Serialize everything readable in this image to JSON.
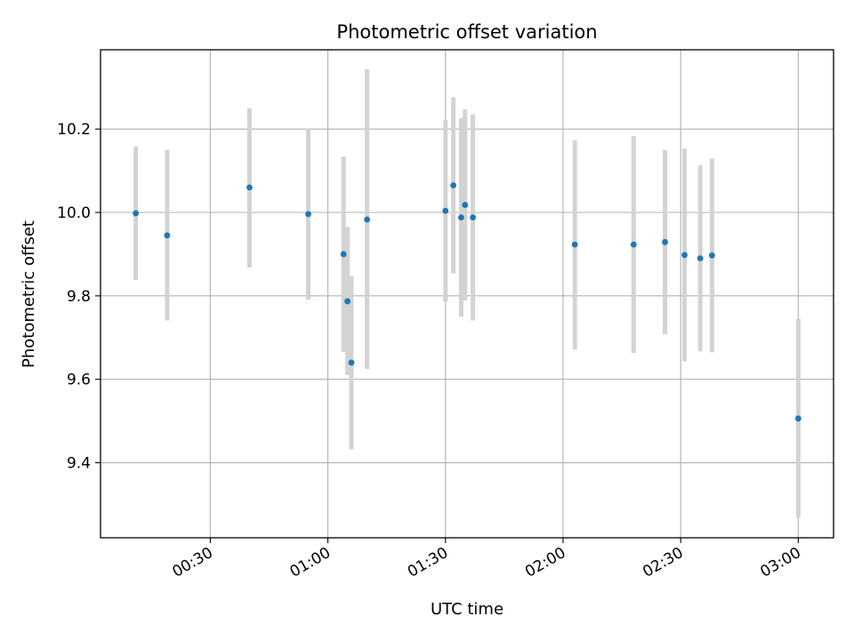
{
  "chart_data": {
    "type": "scatter",
    "title": "Photometric offset variation",
    "xlabel": "UTC time",
    "ylabel": "Photometric offset",
    "grid": true,
    "xlim": [
      "00:02",
      "03:09"
    ],
    "ylim": [
      9.22,
      10.39
    ],
    "x_ticks": [
      "00:30",
      "01:00",
      "01:30",
      "02:00",
      "02:30",
      "03:00"
    ],
    "y_ticks": [
      9.4,
      9.6,
      9.8,
      10.0,
      10.2
    ],
    "marker_color": "#1f77b4",
    "errorbar_color": "#d3d3d3",
    "series": [
      {
        "points": [
          {
            "x": "00:11",
            "y": 9.998,
            "low": 9.838,
            "high": 10.158
          },
          {
            "x": "00:19",
            "y": 9.945,
            "low": 9.741,
            "high": 10.15
          },
          {
            "x": "00:40",
            "y": 10.06,
            "low": 9.868,
            "high": 10.25
          },
          {
            "x": "00:55",
            "y": 9.996,
            "low": 9.791,
            "high": 10.201
          },
          {
            "x": "01:04",
            "y": 9.9,
            "low": 9.666,
            "high": 10.134
          },
          {
            "x": "01:05",
            "y": 9.787,
            "low": 9.61,
            "high": 9.965
          },
          {
            "x": "01:06",
            "y": 9.64,
            "low": 9.432,
            "high": 9.848
          },
          {
            "x": "01:10",
            "y": 9.983,
            "low": 9.625,
            "high": 10.343
          },
          {
            "x": "01:30",
            "y": 10.004,
            "low": 9.786,
            "high": 10.222
          },
          {
            "x": "01:32",
            "y": 10.065,
            "low": 9.854,
            "high": 10.276
          },
          {
            "x": "01:34",
            "y": 9.988,
            "low": 9.75,
            "high": 10.226
          },
          {
            "x": "01:35",
            "y": 10.018,
            "low": 9.789,
            "high": 10.247
          },
          {
            "x": "01:37",
            "y": 9.988,
            "low": 9.741,
            "high": 10.235
          },
          {
            "x": "02:03",
            "y": 9.923,
            "low": 9.671,
            "high": 10.173
          },
          {
            "x": "02:18",
            "y": 9.923,
            "low": 9.663,
            "high": 10.183
          },
          {
            "x": "02:26",
            "y": 9.929,
            "low": 9.708,
            "high": 10.15
          },
          {
            "x": "02:31",
            "y": 9.898,
            "low": 9.643,
            "high": 10.153
          },
          {
            "x": "02:35",
            "y": 9.89,
            "low": 9.667,
            "high": 10.113
          },
          {
            "x": "02:38",
            "y": 9.897,
            "low": 9.665,
            "high": 10.129
          },
          {
            "x": "03:00",
            "y": 9.506,
            "low": 9.268,
            "high": 9.745
          }
        ]
      }
    ]
  }
}
